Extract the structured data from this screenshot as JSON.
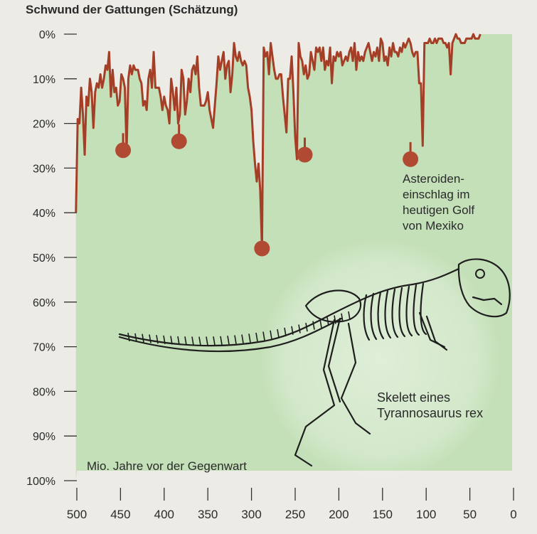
{
  "chart_data": {
    "type": "line",
    "title": "Schwund der Gattungen (Schätzung)",
    "xlabel": "Mio. Jahre vor der Gegenwart",
    "ylabel": "",
    "x_ticks": [
      500,
      450,
      400,
      350,
      300,
      250,
      200,
      150,
      100,
      50,
      0
    ],
    "y_ticks": [
      "0%",
      "10%",
      "20%",
      "30%",
      "40%",
      "50%",
      "60%",
      "70%",
      "80%",
      "90%",
      "100%"
    ],
    "xlim": [
      500,
      0
    ],
    "ylim": [
      0,
      100
    ],
    "y_inverted": true,
    "grid": false,
    "series": [
      {
        "points": [
          [
            501,
            40
          ],
          [
            499,
            19
          ],
          [
            497,
            20
          ],
          [
            495,
            12
          ],
          [
            493,
            18
          ],
          [
            491,
            27
          ],
          [
            489,
            14
          ],
          [
            487,
            16
          ],
          [
            485,
            10
          ],
          [
            483,
            13
          ],
          [
            481,
            21
          ],
          [
            479,
            13
          ],
          [
            477,
            11
          ],
          [
            475,
            12
          ],
          [
            473,
            9
          ],
          [
            471,
            12
          ],
          [
            469,
            10
          ],
          [
            467,
            7
          ],
          [
            465,
            8
          ],
          [
            463,
            4
          ],
          [
            461,
            14
          ],
          [
            459,
            8
          ],
          [
            457,
            13
          ],
          [
            455,
            12
          ],
          [
            453,
            16
          ],
          [
            451,
            15
          ],
          [
            449,
            9
          ],
          [
            447,
            10
          ],
          [
            445,
            12
          ],
          [
            443,
            26
          ],
          [
            441,
            10
          ],
          [
            439,
            7
          ],
          [
            437,
            9
          ],
          [
            435,
            7
          ],
          [
            433,
            8
          ],
          [
            430,
            8
          ],
          [
            428,
            10
          ],
          [
            426,
            11
          ],
          [
            424,
            16
          ],
          [
            422,
            15
          ],
          [
            420,
            17
          ],
          [
            418,
            10
          ],
          [
            416,
            8
          ],
          [
            414,
            12
          ],
          [
            412,
            4
          ],
          [
            410,
            12
          ],
          [
            408,
            12
          ],
          [
            406,
            12
          ],
          [
            404,
            14
          ],
          [
            402,
            17
          ],
          [
            400,
            14
          ],
          [
            398,
            16
          ],
          [
            396,
            17
          ],
          [
            394,
            20
          ],
          [
            392,
            10
          ],
          [
            390,
            13
          ],
          [
            388,
            17
          ],
          [
            386,
            12
          ],
          [
            384,
            20
          ],
          [
            382,
            18
          ],
          [
            380,
            8
          ],
          [
            378,
            10
          ],
          [
            376,
            18
          ],
          [
            374,
            15
          ],
          [
            372,
            10
          ],
          [
            370,
            13
          ],
          [
            368,
            8
          ],
          [
            366,
            7
          ],
          [
            364,
            9
          ],
          [
            362,
            5
          ],
          [
            360,
            12
          ],
          [
            358,
            16
          ],
          [
            356,
            16
          ],
          [
            354,
            16
          ],
          [
            352,
            15
          ],
          [
            350,
            13
          ],
          [
            348,
            17
          ],
          [
            346,
            19
          ],
          [
            344,
            21
          ],
          [
            342,
            16
          ],
          [
            340,
            11
          ],
          [
            338,
            5
          ],
          [
            336,
            8
          ],
          [
            334,
            6
          ],
          [
            332,
            4
          ],
          [
            330,
            10
          ],
          [
            328,
            7
          ],
          [
            326,
            6
          ],
          [
            324,
            13
          ],
          [
            322,
            9
          ],
          [
            320,
            2
          ],
          [
            318,
            5
          ],
          [
            316,
            6
          ],
          [
            314,
            4
          ],
          [
            312,
            6
          ],
          [
            310,
            7
          ],
          [
            308,
            6
          ],
          [
            306,
            7
          ],
          [
            304,
            12
          ],
          [
            302,
            14
          ],
          [
            300,
            17
          ],
          [
            298,
            24
          ],
          [
            296,
            29
          ],
          [
            294,
            33
          ],
          [
            292,
            29
          ],
          [
            290,
            35
          ],
          [
            288,
            48
          ],
          [
            286,
            3
          ],
          [
            284,
            5
          ],
          [
            282,
            4
          ],
          [
            280,
            9
          ],
          [
            278,
            2
          ],
          [
            276,
            5
          ],
          [
            274,
            8
          ],
          [
            272,
            10
          ],
          [
            270,
            10
          ],
          [
            268,
            9
          ],
          [
            266,
            9
          ],
          [
            264,
            14
          ],
          [
            262,
            18
          ],
          [
            260,
            22
          ],
          [
            258,
            10
          ],
          [
            256,
            10
          ],
          [
            254,
            5
          ],
          [
            252,
            13
          ],
          [
            250,
            23
          ],
          [
            248,
            28
          ],
          [
            246,
            2
          ],
          [
            244,
            5
          ],
          [
            242,
            6
          ],
          [
            240,
            9
          ],
          [
            238,
            7
          ],
          [
            236,
            10
          ],
          [
            234,
            9
          ],
          [
            232,
            4
          ],
          [
            230,
            6
          ],
          [
            228,
            8
          ],
          [
            226,
            3
          ],
          [
            224,
            4
          ],
          [
            222,
            3
          ],
          [
            220,
            6
          ],
          [
            218,
            3
          ],
          [
            216,
            8
          ],
          [
            214,
            6
          ],
          [
            212,
            7
          ],
          [
            210,
            3
          ],
          [
            208,
            11
          ],
          [
            206,
            5
          ],
          [
            204,
            6
          ],
          [
            202,
            4
          ],
          [
            200,
            5
          ],
          [
            198,
            4
          ],
          [
            196,
            7
          ],
          [
            194,
            6
          ],
          [
            192,
            5
          ],
          [
            190,
            6
          ],
          [
            188,
            4
          ],
          [
            186,
            3
          ],
          [
            184,
            6
          ],
          [
            182,
            2
          ],
          [
            180,
            8
          ],
          [
            178,
            4
          ],
          [
            176,
            6
          ],
          [
            174,
            5
          ],
          [
            172,
            6
          ],
          [
            170,
            4
          ],
          [
            168,
            3
          ],
          [
            166,
            2
          ],
          [
            164,
            4
          ],
          [
            162,
            6
          ],
          [
            160,
            4
          ],
          [
            158,
            5
          ],
          [
            156,
            3
          ],
          [
            154,
            6
          ],
          [
            152,
            1
          ],
          [
            150,
            2
          ],
          [
            148,
            6
          ],
          [
            146,
            5
          ],
          [
            144,
            7
          ],
          [
            142,
            3
          ],
          [
            140,
            5
          ],
          [
            138,
            2
          ],
          [
            136,
            4
          ],
          [
            134,
            4
          ],
          [
            132,
            5
          ],
          [
            130,
            3
          ],
          [
            128,
            4
          ],
          [
            126,
            2
          ],
          [
            124,
            3
          ],
          [
            122,
            2
          ],
          [
            120,
            1
          ],
          [
            118,
            2
          ],
          [
            116,
            4
          ],
          [
            114,
            5
          ],
          [
            112,
            4
          ],
          [
            110,
            4
          ],
          [
            108,
            11
          ],
          [
            106,
            11
          ],
          [
            104,
            25
          ],
          [
            102,
            2
          ],
          [
            100,
            2
          ],
          [
            98,
            2
          ],
          [
            96,
            1
          ],
          [
            94,
            2
          ],
          [
            92,
            2
          ],
          [
            90,
            1
          ],
          [
            88,
            2
          ],
          [
            86,
            1
          ],
          [
            84,
            1
          ],
          [
            82,
            1
          ],
          [
            80,
            2
          ],
          [
            78,
            2
          ],
          [
            76,
            3
          ],
          [
            74,
            2
          ],
          [
            72,
            9
          ],
          [
            70,
            2
          ],
          [
            68,
            1
          ],
          [
            66,
            0
          ],
          [
            64,
            1
          ],
          [
            62,
            1
          ],
          [
            60,
            2
          ],
          [
            58,
            2
          ],
          [
            56,
            2
          ],
          [
            54,
            1
          ],
          [
            52,
            1
          ],
          [
            50,
            1
          ],
          [
            48,
            1
          ],
          [
            46,
            0
          ],
          [
            44,
            1
          ],
          [
            42,
            1
          ],
          [
            40,
            1
          ],
          [
            38,
            0
          ]
        ]
      }
    ],
    "extinction_markers": [
      {
        "x": 447,
        "y": 26
      },
      {
        "x": 383,
        "y": 24
      },
      {
        "x": 288,
        "y": 48
      },
      {
        "x": 239,
        "y": 27
      },
      {
        "x": 118,
        "y": 28
      }
    ],
    "annotations": {
      "asteroid": [
        "Asteroiden-",
        "einschlag im",
        "heutigen Golf",
        "von Mexiko"
      ],
      "skeleton": [
        "Skelett eines",
        "Tyrannosaurus rex"
      ]
    },
    "colors": {
      "line": "#a53e26",
      "marker": "#b04a33",
      "fill": "#c4e0b8",
      "text": "#2a2a2a",
      "background": "#ecebe6"
    }
  }
}
